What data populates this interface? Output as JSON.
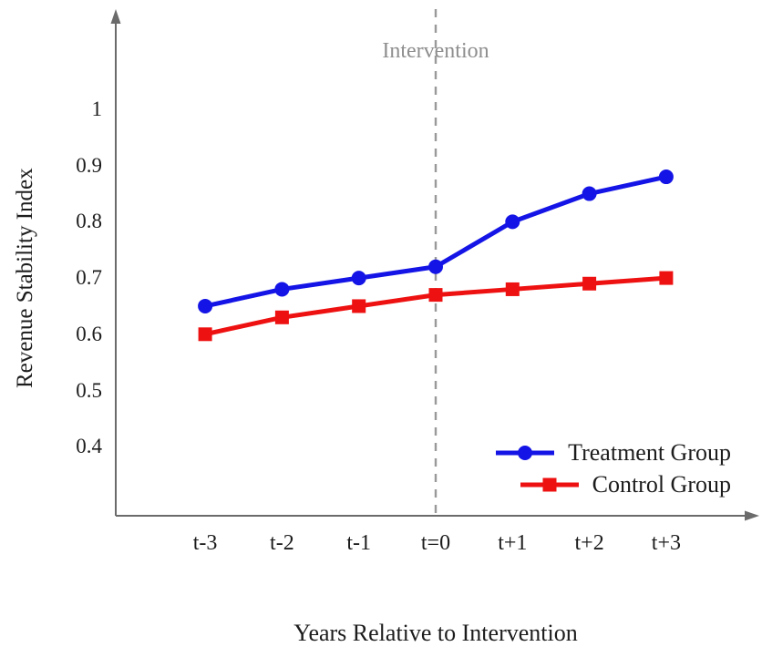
{
  "chart_data": {
    "type": "line",
    "x": [
      -3,
      -2,
      -1,
      0,
      1,
      2,
      3
    ],
    "categories": [
      "t-3",
      "t-2",
      "t-1",
      "t=0",
      "t+1",
      "t+2",
      "t+3"
    ],
    "series": [
      {
        "name": "Treatment Group",
        "color": "#1414e6",
        "marker": "circle",
        "values": [
          0.65,
          0.68,
          0.7,
          0.72,
          0.8,
          0.85,
          0.88
        ]
      },
      {
        "name": "Control Group",
        "color": "#ee1111",
        "marker": "square",
        "values": [
          0.6,
          0.63,
          0.65,
          0.67,
          0.68,
          0.69,
          0.7
        ]
      }
    ],
    "title": "",
    "xlabel": "Years Relative to Intervention",
    "ylabel": "Revenue Stability Index",
    "yticks": [
      0.4,
      0.5,
      0.6,
      0.7,
      0.8,
      0.9,
      1
    ],
    "ylim": [
      0.4,
      1
    ],
    "grid": false,
    "legend_position": "lower right",
    "annotation": {
      "label": "Intervention",
      "x": 0,
      "line_style": "dashed",
      "line_color": "#999999",
      "text_color": "#8e8e8e"
    },
    "axis_color": "#6b6b6b"
  }
}
